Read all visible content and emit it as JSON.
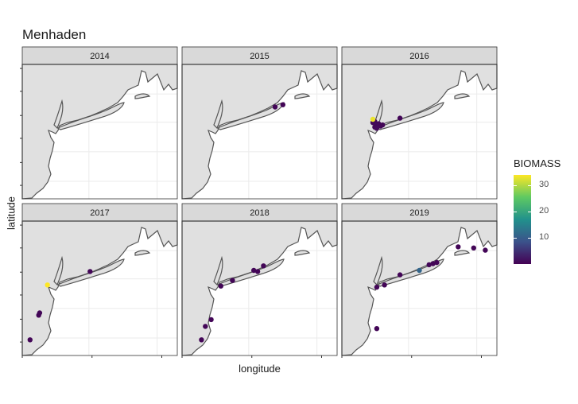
{
  "chart_data": {
    "type": "scatter",
    "title": "Menhaden",
    "xlabel": "longitude",
    "ylabel": "latitude",
    "panels": [
      {
        "label": "2014",
        "points": []
      },
      {
        "label": "2015",
        "points": [
          {
            "lon": -70.2,
            "lat": 41.1,
            "biomass": 0.5
          },
          {
            "lon": -69.8,
            "lat": 41.2,
            "biomass": 0.5
          }
        ]
      },
      {
        "label": "2016",
        "points": [
          {
            "lon": -73.3,
            "lat": 40.45,
            "biomass": 0.6
          },
          {
            "lon": -73.4,
            "lat": 40.4,
            "biomass": 0.8
          },
          {
            "lon": -73.2,
            "lat": 40.3,
            "biomass": 1.0
          },
          {
            "lon": -73.1,
            "lat": 40.35,
            "biomass": 0.7
          },
          {
            "lon": -73.0,
            "lat": 40.25,
            "biomass": 0.6
          },
          {
            "lon": -73.3,
            "lat": 40.2,
            "biomass": 0.5
          },
          {
            "lon": -73.2,
            "lat": 40.15,
            "biomass": 0.9
          },
          {
            "lon": -72.9,
            "lat": 40.3,
            "biomass": 0.5
          },
          {
            "lon": -73.4,
            "lat": 40.55,
            "biomass": 33
          },
          {
            "lon": -72.0,
            "lat": 40.6,
            "biomass": 0.5
          }
        ]
      },
      {
        "label": "2017",
        "points": [
          {
            "lon": -73.7,
            "lat": 40.15,
            "biomass": 34
          },
          {
            "lon": -74.1,
            "lat": 38.9,
            "biomass": 0.6
          },
          {
            "lon": -74.15,
            "lat": 38.8,
            "biomass": 0.5
          },
          {
            "lon": -74.6,
            "lat": 37.7,
            "biomass": 0.5
          },
          {
            "lon": -71.5,
            "lat": 40.75,
            "biomass": 0.5
          }
        ]
      },
      {
        "label": "2018",
        "points": [
          {
            "lon": -73.0,
            "lat": 40.1,
            "biomass": 0.5
          },
          {
            "lon": -72.4,
            "lat": 40.35,
            "biomass": 0.5
          },
          {
            "lon": -71.3,
            "lat": 40.8,
            "biomass": 0.5
          },
          {
            "lon": -71.1,
            "lat": 40.75,
            "biomass": 0.5
          },
          {
            "lon": -70.8,
            "lat": 41.0,
            "biomass": 0.5
          },
          {
            "lon": -73.5,
            "lat": 38.6,
            "biomass": 0.5
          },
          {
            "lon": -73.8,
            "lat": 38.3,
            "biomass": 0.5
          },
          {
            "lon": -74.0,
            "lat": 37.7,
            "biomass": 0.5
          }
        ]
      },
      {
        "label": "2019",
        "points": [
          {
            "lon": -73.2,
            "lat": 40.05,
            "biomass": 0.5
          },
          {
            "lon": -72.8,
            "lat": 40.15,
            "biomass": 0.5
          },
          {
            "lon": -72.0,
            "lat": 40.6,
            "biomass": 0.5
          },
          {
            "lon": -71.0,
            "lat": 40.8,
            "biomass": 11
          },
          {
            "lon": -70.5,
            "lat": 41.05,
            "biomass": 0.6
          },
          {
            "lon": -70.3,
            "lat": 41.1,
            "biomass": 0.5
          },
          {
            "lon": -70.1,
            "lat": 41.15,
            "biomass": 0.5
          },
          {
            "lon": -69.0,
            "lat": 41.85,
            "biomass": 0.5
          },
          {
            "lon": -68.2,
            "lat": 41.8,
            "biomass": 0.5
          },
          {
            "lon": -67.6,
            "lat": 41.7,
            "biomass": 0.5
          },
          {
            "lon": -73.2,
            "lat": 38.2,
            "biomass": 0.5
          }
        ]
      }
    ],
    "xlim": [
      -75.0,
      -67.0
    ],
    "ylim": [
      37.0,
      43.0
    ],
    "colorbar": {
      "title": "BIOMASS",
      "ticks": [
        10,
        20,
        30
      ],
      "range": [
        0,
        34
      ],
      "colors": [
        "#440154",
        "#3b528b",
        "#21918c",
        "#5ec962",
        "#fde725"
      ]
    },
    "grid": true
  }
}
